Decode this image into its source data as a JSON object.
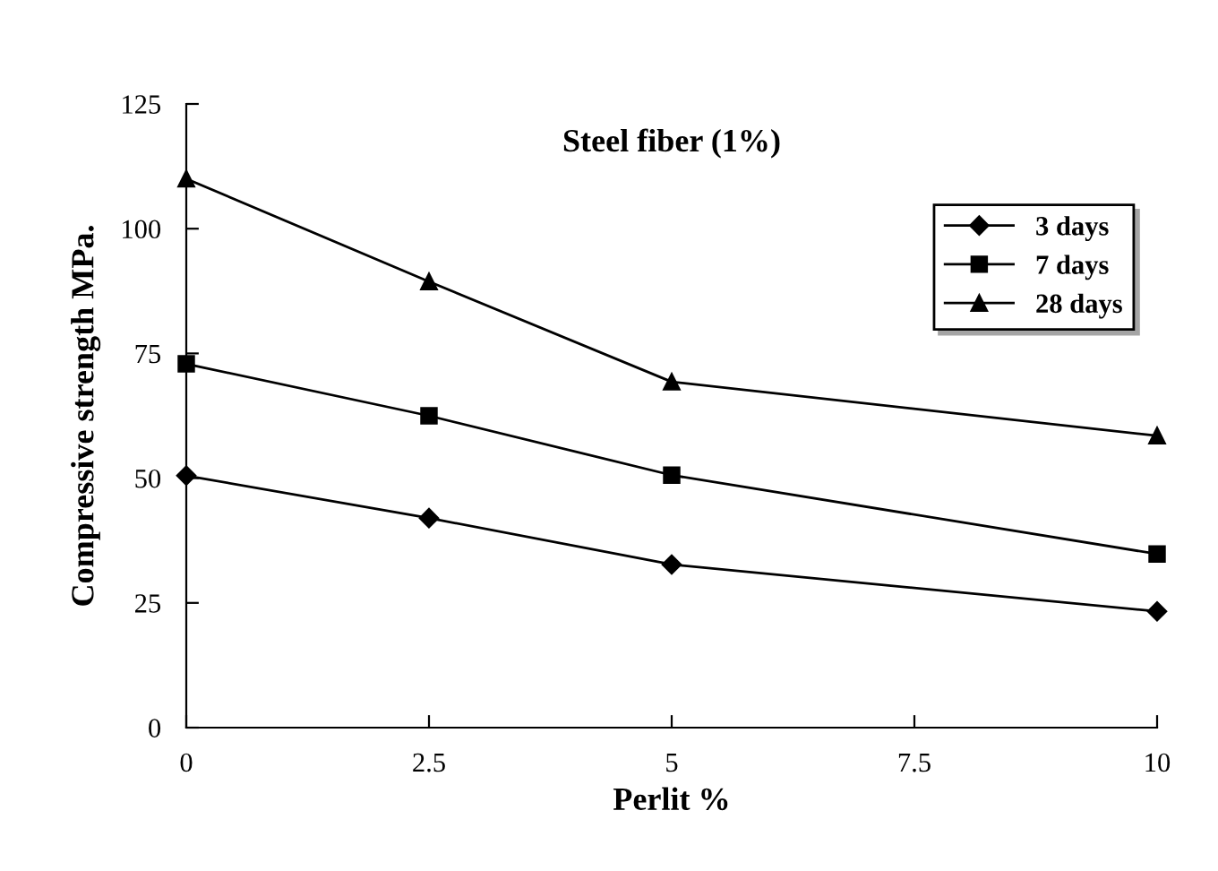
{
  "chart_data": {
    "type": "line",
    "title": "Steel fiber (1%)",
    "xlabel": "Perlit %",
    "ylabel": "Compressive strength MPa.",
    "x": [
      0,
      2.5,
      5,
      10
    ],
    "series": [
      {
        "name": "3 days",
        "color": "#000000",
        "marker": "diamond",
        "values": [
          50.5,
          42,
          32.7,
          23.3
        ]
      },
      {
        "name": "7 days",
        "color": "#000000",
        "marker": "square",
        "values": [
          72.9,
          62.5,
          50.6,
          34.8
        ]
      },
      {
        "name": "28 days",
        "color": "#000000",
        "marker": "triangle",
        "values": [
          110,
          89.4,
          69.3,
          58.5
        ]
      }
    ],
    "xlim": [
      0,
      10
    ],
    "xticks": [
      0,
      2.5,
      5,
      7.5,
      10
    ],
    "ylim": [
      0,
      125
    ],
    "yticks": [
      0,
      25,
      50,
      75,
      100,
      125
    ],
    "grid": false,
    "legend": "top right",
    "line_style": "solid"
  }
}
